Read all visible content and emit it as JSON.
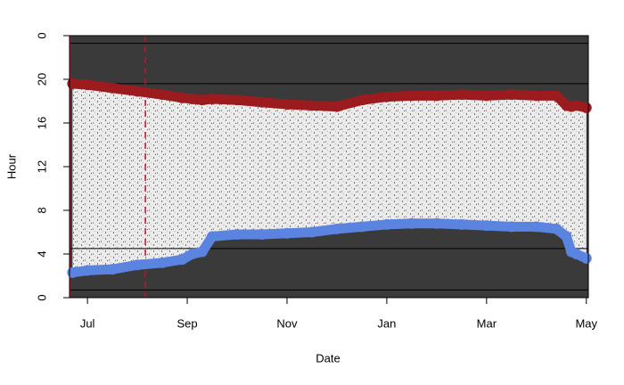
{
  "chart_data": {
    "type": "line",
    "x_label": "Date",
    "y_label": "Hour",
    "xlim": [
      6.64,
      17.04
    ],
    "xticks": [
      {
        "value": 7,
        "label": "Jul"
      },
      {
        "value": 9,
        "label": "Sep"
      },
      {
        "value": 11,
        "label": "Nov"
      },
      {
        "value": 13,
        "label": "Jan"
      },
      {
        "value": 15,
        "label": "Mar"
      },
      {
        "value": 17,
        "label": "May"
      }
    ],
    "ylim": [
      0,
      24
    ],
    "yticks": [
      0,
      4,
      8,
      12,
      16,
      20,
      {
        "value": 24,
        "label": "0"
      }
    ],
    "hlines": [
      0.7,
      4.5,
      19.6,
      23.3
    ],
    "vlines": [
      {
        "x": 6.65,
        "color": "#b2182b",
        "dash": false
      },
      {
        "x": 8.16,
        "color": "#b2182b",
        "dash": true
      }
    ],
    "background": "#3a3a3a",
    "x": [
      6.7,
      7.0,
      7.5,
      8.0,
      8.5,
      8.9,
      9.1,
      9.3,
      9.5,
      10.0,
      10.5,
      11.0,
      11.5,
      12.0,
      12.5,
      13.0,
      13.5,
      14.0,
      14.5,
      15.0,
      15.5,
      16.0,
      16.4,
      16.6,
      16.7,
      16.8,
      17.0
    ],
    "series": [
      {
        "color": "#5b84e0",
        "values": [
          2.3,
          2.5,
          2.6,
          3.0,
          3.2,
          3.5,
          4.0,
          4.2,
          5.6,
          5.8,
          5.8,
          5.9,
          6.0,
          6.3,
          6.5,
          6.7,
          6.8,
          6.8,
          6.7,
          6.6,
          6.5,
          6.5,
          6.3,
          5.6,
          4.2,
          4.0,
          3.6
        ]
      },
      {
        "color": "#9b1b1f",
        "values": [
          19.6,
          19.5,
          19.2,
          18.9,
          18.6,
          18.3,
          18.2,
          18.1,
          18.2,
          18.1,
          17.9,
          17.7,
          17.6,
          17.5,
          18.1,
          18.4,
          18.5,
          18.5,
          18.6,
          18.5,
          18.6,
          18.5,
          18.5,
          17.6,
          17.5,
          17.6,
          17.4
        ]
      }
    ]
  }
}
